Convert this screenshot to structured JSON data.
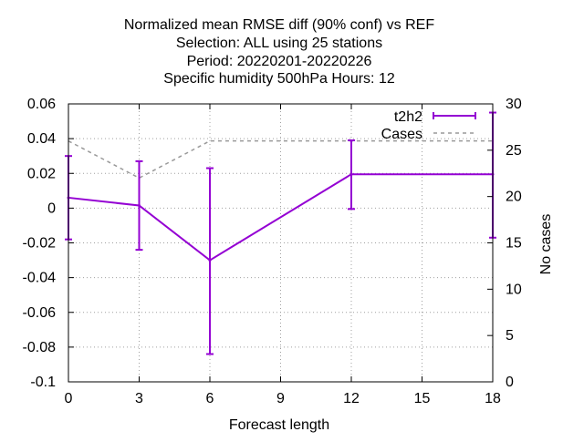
{
  "chart_data": {
    "type": "line",
    "title_lines": [
      "Normalized mean RMSE diff (90% conf) vs REF",
      "Selection: ALL using    25 stations",
      "Period: 20220201-20220226",
      "Specific humidity 500hPa   Hours:  12"
    ],
    "xlabel": "Forecast length",
    "ylabel": "",
    "y2label": "No cases",
    "xlim": [
      0,
      18
    ],
    "ylim": [
      -0.1,
      0.06
    ],
    "y2lim": [
      0,
      30
    ],
    "x_ticks": [
      0,
      3,
      6,
      9,
      12,
      15,
      18
    ],
    "y_ticks": [
      -0.1,
      -0.08,
      -0.06,
      -0.04,
      -0.02,
      0,
      0.02,
      0.04,
      0.06
    ],
    "y_tick_labels": [
      "-0.1",
      "-0.08",
      "-0.06",
      "-0.04",
      "-0.02",
      "0",
      "0.02",
      "0.04",
      "0.06"
    ],
    "y2_ticks": [
      0,
      5,
      10,
      15,
      20,
      25,
      30
    ],
    "grid": true,
    "legend_position": "top-right",
    "series": [
      {
        "name": "t2h2",
        "color": "#9400d3",
        "style": "line-errorbars",
        "x": [
          0,
          3,
          6,
          12,
          18
        ],
        "y": [
          0.006,
          0.0015,
          -0.03,
          0.0195,
          0.0195
        ],
        "err_low": [
          -0.018,
          -0.024,
          -0.084,
          -0.0005,
          -0.017
        ],
        "err_high": [
          0.03,
          0.027,
          0.023,
          0.039,
          0.055
        ]
      },
      {
        "name": "Cases",
        "color": "#999999",
        "style": "dashed",
        "axis": "y2",
        "x": [
          0,
          3,
          6,
          12,
          18
        ],
        "y": [
          26,
          22,
          26,
          26,
          26
        ]
      }
    ]
  }
}
